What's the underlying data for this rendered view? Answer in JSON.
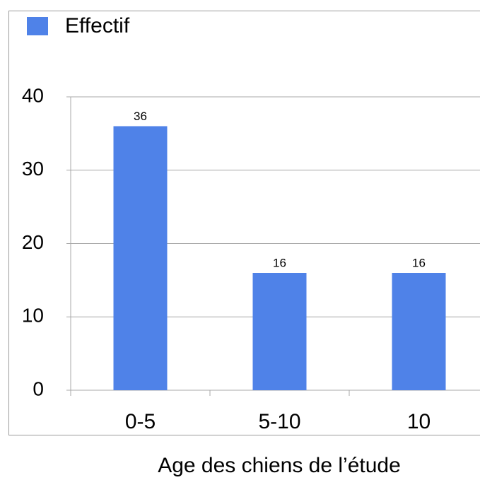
{
  "chart_data": {
    "type": "bar",
    "legend": "Effectif",
    "x_label": "Age des chiens de l’étude",
    "categories": [
      "0-5",
      "5-10",
      "10"
    ],
    "values": [
      36,
      16,
      16
    ],
    "color": "#4f82e8",
    "ylim": [
      0,
      40
    ],
    "yticks": [
      0,
      10,
      20,
      30,
      40
    ],
    "grid": true,
    "legend_position": "top-left"
  }
}
